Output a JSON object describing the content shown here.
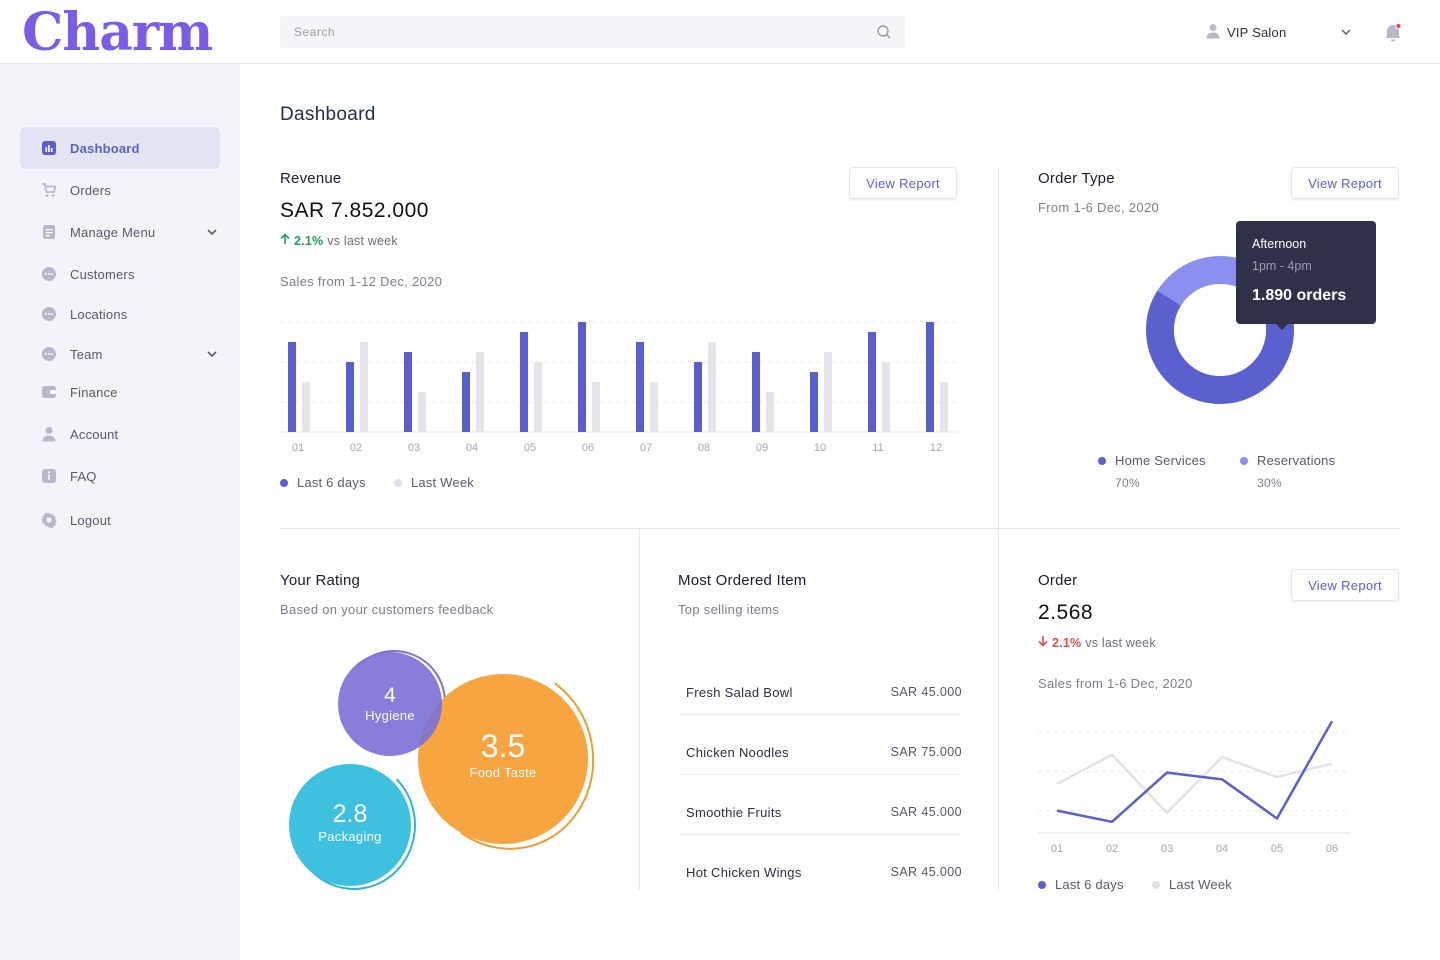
{
  "app": {
    "logo": "Charm"
  },
  "sidebar": {
    "items": [
      {
        "label": "Dashboard",
        "icon": "chart-bar-icon",
        "active": true
      },
      {
        "label": "Orders",
        "icon": "cart-icon"
      },
      {
        "label": "Manage Menu",
        "icon": "menu-doc-icon",
        "expandable": true
      },
      {
        "label": "Customers",
        "icon": "chat-icon"
      },
      {
        "label": "Locations",
        "icon": "chat-icon"
      },
      {
        "label": "Team",
        "icon": "chat-icon",
        "expandable": true
      },
      {
        "label": "Finance",
        "icon": "wallet-icon"
      },
      {
        "label": "Account",
        "icon": "user-icon"
      },
      {
        "label": "FAQ",
        "icon": "info-icon"
      },
      {
        "label": "Logout",
        "icon": "gear-icon"
      }
    ]
  },
  "header": {
    "search_placeholder": "Search",
    "user_label": "VIP Salon"
  },
  "page": {
    "title": "Dashboard"
  },
  "revenue": {
    "title": "Revenue",
    "value": "SAR 7.852.000",
    "delta": "2.1%",
    "delta_text": "vs last week",
    "sales_range": "Sales from 1-12 Dec, 2020",
    "button": "View Report",
    "legend": [
      "Last 6 days",
      "Last Week"
    ]
  },
  "order_type": {
    "title": "Order Type",
    "range": "From 1-6 Dec, 2020",
    "button": "View Report",
    "tooltip": {
      "title": "Afternoon",
      "time": "1pm - 4pm",
      "value": "1.890 orders"
    },
    "legend": [
      {
        "label": "Home Services",
        "pct": "70%"
      },
      {
        "label": "Reservations",
        "pct": "30%"
      }
    ]
  },
  "rating": {
    "title": "Your Rating",
    "subtitle": "Based on your customers feedback",
    "bubbles": [
      {
        "value": "4",
        "label": "Hygiene"
      },
      {
        "value": "3.5",
        "label": "Food Taste"
      },
      {
        "value": "2.8",
        "label": "Packaging"
      }
    ]
  },
  "most_ordered": {
    "title": "Most Ordered Item",
    "subtitle": "Top selling items",
    "items": [
      {
        "name": "Fresh Salad Bowl",
        "price": "SAR 45.000"
      },
      {
        "name": "Chicken Noodles",
        "price": "SAR 75.000"
      },
      {
        "name": "Smoothie Fruits",
        "price": "SAR 45.000"
      },
      {
        "name": "Hot Chicken Wings",
        "price": "SAR 45.000"
      }
    ]
  },
  "order": {
    "title": "Order",
    "value": "2.568",
    "delta": "2.1%",
    "delta_text": "vs last week",
    "sales_range": "Sales from 1-6 Dec, 2020",
    "button": "View Report",
    "legend": [
      "Last 6 days",
      "Last Week"
    ]
  },
  "colors": {
    "primary": "#5a5fcf",
    "secondary_bar": "#e4e4ea",
    "donut_main": "#5b60cf",
    "donut_light": "#8a8ff0",
    "hygiene": "#8078dd",
    "food_taste": "#f7a540",
    "packaging": "#3ec1de",
    "up": "#1e9e5a",
    "down": "#e5484d"
  },
  "chart_data": [
    {
      "type": "bar",
      "categories": [
        "01",
        "02",
        "03",
        "04",
        "05",
        "06",
        "07",
        "08",
        "09",
        "10",
        "11",
        "12"
      ],
      "series": [
        {
          "name": "Last 6 days",
          "values": [
            90,
            70,
            80,
            60,
            100,
            110,
            90,
            70,
            80,
            60,
            100,
            110
          ]
        },
        {
          "name": "Last Week",
          "values": [
            50,
            90,
            40,
            80,
            70,
            50,
            50,
            90,
            40,
            80,
            70,
            50
          ]
        }
      ],
      "ylim": [
        0,
        120
      ],
      "grid": true,
      "legend": "bottom-left"
    },
    {
      "type": "pie",
      "donut": true,
      "categories": [
        "Home Services",
        "Reservations"
      ],
      "values": [
        70,
        30
      ],
      "legend": "bottom"
    },
    {
      "type": "line",
      "x": [
        "01",
        "02",
        "03",
        "04",
        "05",
        "06"
      ],
      "series": [
        {
          "name": "Last 6 days",
          "values": [
            2,
            1,
            5.4,
            4.8,
            1.3,
            10
          ]
        },
        {
          "name": "Last Week",
          "values": [
            4.4,
            7,
            1.8,
            6.8,
            5,
            6.2
          ]
        }
      ],
      "ylim": [
        0,
        11
      ],
      "grid": true,
      "legend": "bottom-left"
    }
  ]
}
